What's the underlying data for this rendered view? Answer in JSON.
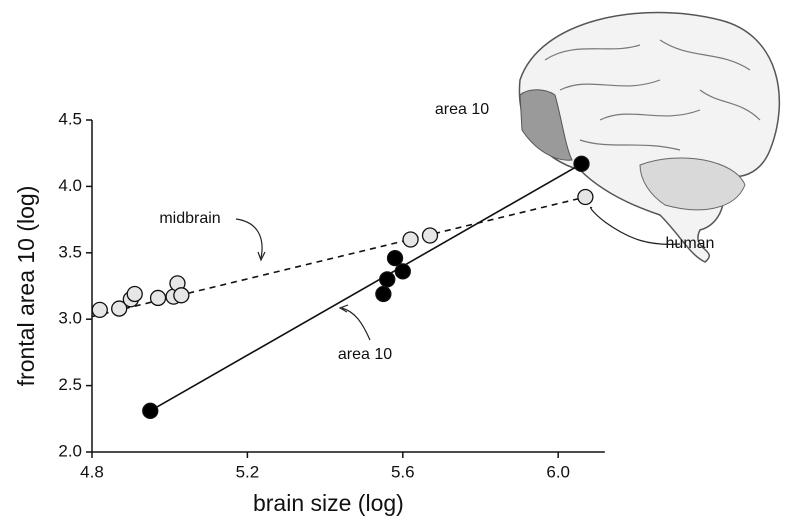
{
  "chart_data": {
    "type": "scatter",
    "x_label": "brain size (log)",
    "y_label": "frontal area 10 (log)",
    "xlim": [
      4.8,
      6.12
    ],
    "ylim": [
      2.0,
      4.5
    ],
    "xticks": [
      4.8,
      5.2,
      5.6,
      {
        "value": 6,
        "label": "6.0"
      }
    ],
    "yticks": [
      {
        "value": 2,
        "label": "2.0"
      },
      2.5,
      {
        "value": 3,
        "label": "3.0"
      },
      3.5,
      {
        "value": 4,
        "label": "4.0"
      },
      4.5
    ],
    "series": [
      {
        "name": "area 10",
        "color": "#000000",
        "line_style": "solid",
        "x": [
          4.95,
          5.55,
          5.56,
          5.58,
          5.6,
          6.06
        ],
        "values": [
          2.31,
          3.19,
          3.3,
          3.46,
          3.36,
          4.17
        ]
      },
      {
        "name": "midbrain",
        "color": "#e6e6e6",
        "line_style": "dashed",
        "x": [
          4.82,
          4.87,
          4.9,
          4.91,
          4.97,
          5.01,
          5.02,
          5.03,
          5.62,
          5.67,
          6.07
        ],
        "values": [
          3.07,
          3.08,
          3.15,
          3.19,
          3.16,
          3.17,
          3.27,
          3.18,
          3.6,
          3.63,
          3.92
        ]
      }
    ],
    "lines": [
      {
        "x": [
          4.95,
          6.06
        ],
        "y": [
          2.31,
          4.17
        ],
        "style": "solid"
      },
      {
        "x": [
          4.8,
          6.07
        ],
        "y": [
          3.02,
          3.92
        ],
        "style": "dashed"
      }
    ],
    "annotations": [
      "midbrain",
      "area 10",
      "area 10",
      "human"
    ]
  }
}
